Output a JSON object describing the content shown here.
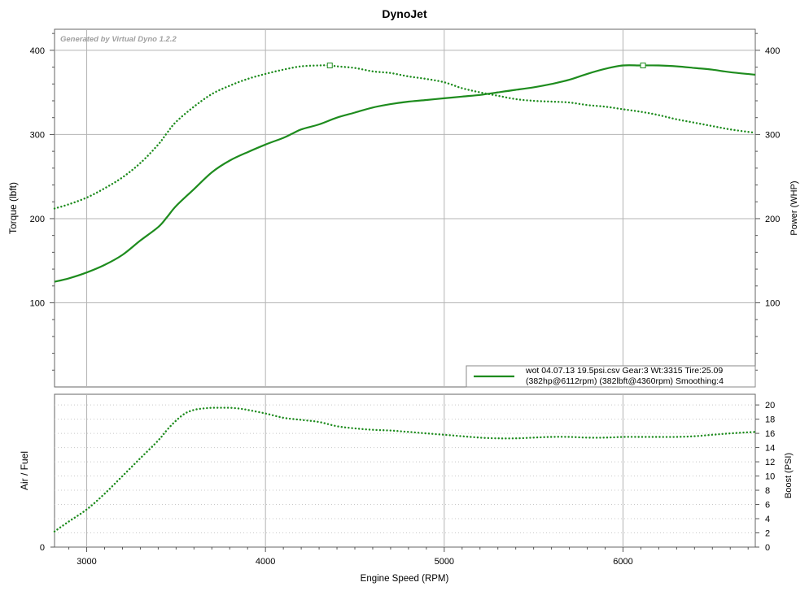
{
  "chart_data": {
    "type": "line",
    "title": "DynoJet",
    "watermark": "Generated by Virtual Dyno 1.2.2",
    "xlabel": "Engine Speed (RPM)",
    "xlim": [
      2820,
      6740
    ],
    "x_ticks": [
      "3000",
      "4000",
      "5000",
      "6000"
    ],
    "x_tick_values": [
      3000,
      4000,
      5000,
      6000
    ],
    "line_color": "#1e8c1e",
    "grid": true,
    "top_panel": {
      "ylabel_left": "Torque (lbft)",
      "ylabel_right": "Power (WHP)",
      "ylim": [
        0,
        425
      ],
      "y_ticks": [
        "100",
        "200",
        "300",
        "400"
      ],
      "y_tick_values": [
        100,
        200,
        300,
        400
      ],
      "series": [
        {
          "key": "power",
          "style": "solid",
          "peak_x": 6112,
          "peak_y": 382,
          "x": [
            2820,
            2900,
            3000,
            3100,
            3200,
            3300,
            3400,
            3450,
            3500,
            3600,
            3700,
            3800,
            3900,
            4000,
            4100,
            4150,
            4200,
            4300,
            4400,
            4500,
            4600,
            4700,
            4800,
            4900,
            5000,
            5100,
            5200,
            5300,
            5400,
            5500,
            5600,
            5700,
            5800,
            5900,
            6000,
            6100,
            6200,
            6300,
            6400,
            6500,
            6600,
            6740
          ],
          "y": [
            125,
            129,
            136,
            145,
            157,
            174,
            190,
            202,
            215,
            235,
            255,
            269,
            279,
            288,
            296,
            301,
            306,
            312,
            320,
            326,
            332,
            336,
            339,
            341,
            343,
            345,
            347,
            350,
            353,
            356,
            360,
            365,
            372,
            378,
            382,
            382,
            382,
            381,
            379,
            377,
            374,
            371
          ]
        },
        {
          "key": "torque",
          "style": "dotted",
          "peak_x": 4360,
          "peak_y": 382,
          "x": [
            2820,
            2900,
            3000,
            3100,
            3200,
            3300,
            3400,
            3450,
            3500,
            3600,
            3700,
            3800,
            3900,
            4000,
            4100,
            4200,
            4300,
            4360,
            4400,
            4500,
            4600,
            4700,
            4800,
            4900,
            5000,
            5100,
            5200,
            5300,
            5400,
            5500,
            5600,
            5700,
            5800,
            5900,
            6000,
            6100,
            6200,
            6300,
            6400,
            6500,
            6600,
            6740
          ],
          "y": [
            212,
            217,
            225,
            236,
            249,
            266,
            288,
            302,
            315,
            333,
            348,
            358,
            366,
            372,
            377,
            381,
            382,
            382,
            381,
            379,
            375,
            373,
            369,
            366,
            362,
            355,
            350,
            346,
            342,
            340,
            339,
            338,
            335,
            333,
            330,
            327,
            323,
            318,
            314,
            310,
            306,
            302
          ]
        }
      ]
    },
    "bottom_panel": {
      "ylabel_left": "Air / Fuel",
      "ylabel_right": "Boost (PSI)",
      "ylim": [
        0,
        21.5
      ],
      "y_ticks_left": [
        "0"
      ],
      "y_tick_values_left": [
        0
      ],
      "y_ticks_right": [
        "0",
        "2",
        "4",
        "6",
        "8",
        "10",
        "12",
        "14",
        "16",
        "18",
        "20"
      ],
      "y_tick_values_right": [
        0,
        2,
        4,
        6,
        8,
        10,
        12,
        14,
        16,
        18,
        20
      ],
      "series": [
        {
          "key": "boost",
          "style": "dotted",
          "x": [
            2820,
            2900,
            3000,
            3100,
            3200,
            3300,
            3400,
            3450,
            3500,
            3550,
            3600,
            3650,
            3700,
            3750,
            3800,
            3850,
            3900,
            4000,
            4100,
            4200,
            4300,
            4400,
            4500,
            4600,
            4700,
            4800,
            4900,
            5000,
            5100,
            5200,
            5300,
            5400,
            5500,
            5600,
            5700,
            5800,
            5900,
            6000,
            6100,
            6200,
            6300,
            6400,
            6500,
            6600,
            6740
          ],
          "y": [
            2.2,
            3.6,
            5.3,
            7.5,
            10.0,
            12.5,
            15.0,
            16.5,
            17.8,
            18.8,
            19.3,
            19.5,
            19.6,
            19.6,
            19.6,
            19.5,
            19.3,
            18.8,
            18.2,
            17.9,
            17.6,
            17.0,
            16.7,
            16.5,
            16.4,
            16.2,
            16.0,
            15.8,
            15.6,
            15.4,
            15.3,
            15.3,
            15.4,
            15.5,
            15.5,
            15.4,
            15.4,
            15.5,
            15.5,
            15.5,
            15.5,
            15.6,
            15.8,
            16.0,
            16.2
          ]
        }
      ]
    },
    "legend": {
      "line1": "wot 04.07.13 19.5psi.csv Gear:3 Wt:3315 Tire:25.09",
      "line2": "(382hp@6112rpm) (382lbft@4360rpm) Smoothing:4"
    }
  }
}
